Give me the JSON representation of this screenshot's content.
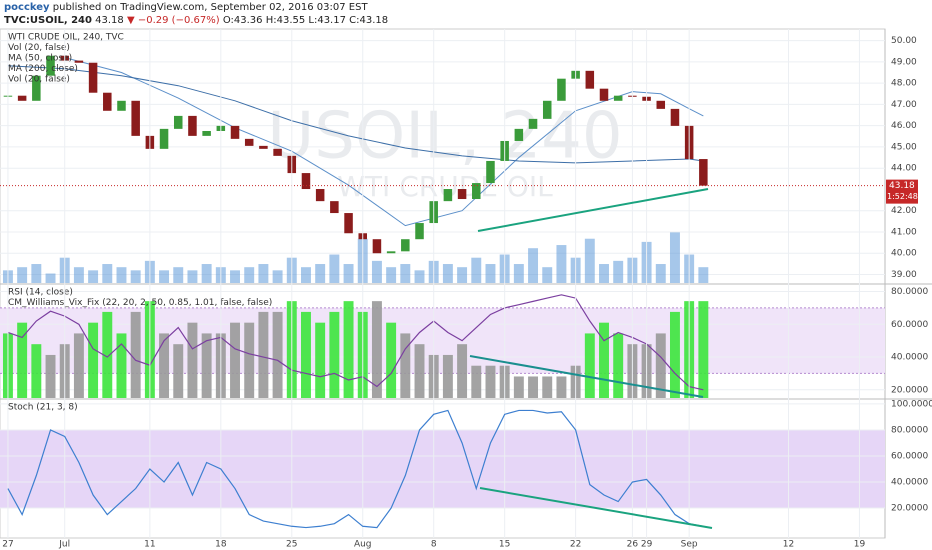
{
  "header": {
    "author": "pocckey",
    "published": "published on TradingView.com, September 02, 2016 03:07 EST",
    "symbol": "TVC:USOIL, 240",
    "last": "43.18",
    "change": "▼ −0.29 (−0.67%)",
    "ohlc": "O:43.36 H:43.55 L:43.17 C:43.18"
  },
  "chart_data": [
    {
      "type": "candlestick",
      "legend": [
        "WTI CRUDE OIL, 240, TVC",
        "Vol (20, false)",
        "MA (50, close)",
        "MA (200, close)",
        "Vol (20, false)"
      ],
      "watermark": [
        "USOIL, 240",
        "WTI CRUDE OIL"
      ],
      "up_color": "#3a9b3a",
      "down_color": "#8b1c1c",
      "x": [
        0,
        1,
        2,
        3,
        4,
        5,
        6,
        7,
        8,
        9,
        10,
        11,
        12,
        13,
        14,
        15,
        16,
        17,
        18,
        19,
        20,
        21,
        22,
        23,
        24,
        25,
        26,
        27,
        28,
        29,
        30,
        31,
        32,
        33,
        34,
        35,
        36,
        37,
        38,
        39,
        40,
        41,
        42,
        43,
        44,
        45,
        46,
        47,
        48,
        49
      ],
      "values": [
        47.41,
        47.17,
        48.35,
        49.29,
        49.06,
        48.96,
        47.55,
        46.7,
        47.17,
        45.52,
        44.91,
        45.85,
        46.46,
        45.52,
        45.75,
        45.99,
        45.38,
        45.05,
        44.91,
        44.58,
        43.77,
        43.02,
        42.45,
        41.89,
        40.94,
        40.66,
        40.0,
        40.09,
        40.66,
        41.42,
        42.45,
        43.02,
        42.55,
        43.3,
        44.34,
        45.28,
        45.85,
        46.32,
        47.17,
        48.21,
        48.58,
        47.74,
        47.17,
        47.41,
        47.36,
        47.17,
        46.79,
        45.99,
        44.43,
        43.18
      ],
      "series": [
        {
          "name": "MA (50, close)",
          "color": "#5b8fc9",
          "x": [
            4,
            8,
            12,
            16,
            20,
            24,
            28,
            32,
            36,
            40,
            44,
            46,
            48,
            49
          ],
          "values": [
            49.2,
            48.5,
            47.3,
            45.9,
            44.8,
            43.2,
            41.3,
            42.0,
            44.5,
            46.7,
            47.6,
            47.5,
            46.8,
            46.46
          ]
        },
        {
          "name": "MA (200, close)",
          "color": "#3d6fa8",
          "x": [
            0,
            4,
            8,
            12,
            16,
            20,
            24,
            28,
            32,
            36,
            40,
            44,
            48,
            49
          ],
          "values": [
            48.82,
            48.68,
            48.35,
            47.88,
            47.17,
            46.23,
            45.52,
            44.95,
            44.58,
            44.34,
            44.25,
            44.34,
            44.43,
            44.34
          ]
        },
        {
          "name": "Vol (20, false)",
          "type": "bar",
          "axis": "y2",
          "color": "#4d8fd6",
          "values": [
            20,
            25,
            30,
            15,
            40,
            25,
            20,
            30,
            25,
            20,
            35,
            20,
            25,
            20,
            30,
            25,
            20,
            25,
            30,
            20,
            40,
            25,
            30,
            45,
            30,
            70,
            35,
            25,
            30,
            20,
            35,
            30,
            25,
            40,
            30,
            45,
            30,
            55,
            25,
            60,
            40,
            70,
            30,
            35,
            40,
            65,
            30,
            80,
            45,
            25
          ]
        }
      ],
      "price_marker": {
        "value": 43.18,
        "label": "43.18"
      },
      "countdown": "1:52:48",
      "xlim": [
        -0.56,
        61.8
      ],
      "ylim": [
        38.6,
        50.5
      ],
      "y2lim": [
        0,
        400
      ],
      "grid": true,
      "yticks": [
        {
          "value": 39,
          "label": "39.00"
        },
        {
          "value": 40,
          "label": "40.00"
        },
        {
          "value": 41,
          "label": "41.00"
        },
        {
          "value": 42,
          "label": "42.00"
        },
        {
          "value": 44,
          "label": "44.00"
        },
        {
          "value": 45,
          "label": "45.00"
        },
        {
          "value": 46,
          "label": "46.00"
        },
        {
          "value": 47,
          "label": "47.00"
        },
        {
          "value": 48,
          "label": "48.00"
        },
        {
          "value": 49,
          "label": "49.00"
        },
        {
          "value": 50,
          "label": "50.00"
        }
      ]
    },
    {
      "type": "line",
      "legend": [
        "RSI (14, close)",
        "CM_Williams_Vix_Fix (22, 20, 2, 50, 0.85, 1.01, false, false)"
      ],
      "band": [
        30,
        70
      ],
      "band_color": "#f0e4f9",
      "x": [
        0,
        1,
        2,
        3,
        4,
        5,
        6,
        7,
        8,
        9,
        10,
        11,
        12,
        13,
        14,
        15,
        16,
        17,
        18,
        19,
        20,
        21,
        22,
        23,
        24,
        25,
        26,
        27,
        28,
        29,
        30,
        31,
        32,
        33,
        34,
        35,
        36,
        37,
        38,
        39,
        40,
        41,
        42,
        43,
        44,
        45,
        46,
        47,
        48,
        49
      ],
      "values": [
        55,
        52,
        62,
        68,
        65,
        60,
        45,
        40,
        48,
        38,
        35,
        50,
        58,
        45,
        50,
        52,
        45,
        42,
        40,
        38,
        32,
        30,
        28,
        30,
        26,
        28,
        22,
        30,
        45,
        55,
        62,
        55,
        50,
        58,
        66,
        70,
        72,
        74,
        76,
        78,
        76,
        62,
        50,
        55,
        52,
        48,
        40,
        30,
        22,
        20
      ],
      "color": "#7b3fa0",
      "series": [
        {
          "name": "CM_Williams_Vix_Fix",
          "type": "bar",
          "axis": "y2",
          "values": [
            6,
            7,
            5,
            4,
            5,
            6,
            7,
            8,
            6,
            8,
            9,
            6,
            5,
            7,
            6,
            6,
            7,
            7,
            8,
            8,
            9,
            8,
            7,
            8,
            9,
            8,
            9,
            7,
            6,
            5,
            4,
            4,
            5,
            3,
            3,
            3,
            2,
            2,
            2,
            2,
            3,
            6,
            7,
            6,
            5,
            5,
            6,
            8,
            9,
            9
          ],
          "colors": [
            "#3ce43c",
            "#3ce43c",
            "#3ce43c",
            "#999999",
            "#999999",
            "#999999",
            "#3ce43c",
            "#3ce43c",
            "#3ce43c",
            "#999999",
            "#3ce43c",
            "#999999",
            "#999999",
            "#999999",
            "#999999",
            "#999999",
            "#999999",
            "#999999",
            "#999999",
            "#999999",
            "#3ce43c",
            "#3ce43c",
            "#3ce43c",
            "#3ce43c",
            "#3ce43c",
            "#3ce43c",
            "#999999",
            "#3ce43c",
            "#999999",
            "#999999",
            "#999999",
            "#999999",
            "#999999",
            "#999999",
            "#999999",
            "#999999",
            "#999999",
            "#999999",
            "#999999",
            "#999999",
            "#999999",
            "#3ce43c",
            "#3ce43c",
            "#3ce43c",
            "#999999",
            "#999999",
            "#999999",
            "#3ce43c",
            "#3ce43c",
            "#3ce43c"
          ]
        }
      ],
      "xlim": [
        -0.56,
        61.8
      ],
      "ylim": [
        15,
        84
      ],
      "y2lim": [
        0,
        10.5
      ],
      "grid": true,
      "yticks": [
        {
          "value": 20,
          "label": "20.0000"
        },
        {
          "value": 40,
          "label": "40.0000"
        },
        {
          "value": 60,
          "label": "60.0000"
        },
        {
          "value": 80,
          "label": "80.0000"
        }
      ]
    },
    {
      "type": "line",
      "legend": [
        "Stoch (21, 3, 8)"
      ],
      "band": [
        20,
        80
      ],
      "band_color": "#e6d6f7",
      "x": [
        0,
        1,
        2,
        3,
        4,
        5,
        6,
        7,
        8,
        9,
        10,
        11,
        12,
        13,
        14,
        15,
        16,
        17,
        18,
        19,
        20,
        21,
        22,
        23,
        24,
        25,
        26,
        27,
        28,
        29,
        30,
        31,
        32,
        33,
        34,
        35,
        36,
        37,
        38,
        39,
        40,
        41,
        42,
        43,
        44,
        45,
        46,
        47,
        48,
        49
      ],
      "values": [
        35,
        15,
        45,
        80,
        75,
        55,
        30,
        15,
        25,
        35,
        50,
        40,
        55,
        30,
        55,
        50,
        35,
        15,
        10,
        8,
        6,
        5,
        6,
        8,
        15,
        6,
        5,
        20,
        45,
        80,
        92,
        95,
        70,
        35,
        70,
        92,
        95,
        95,
        93,
        94,
        80,
        38,
        30,
        25,
        40,
        42,
        30,
        15,
        8,
        6
      ],
      "color": "#3d7fd0",
      "xlim": [
        -0.56,
        61.8
      ],
      "ylim": [
        -3,
        103
      ],
      "grid": true,
      "yticks": [
        {
          "value": 20,
          "label": "20.0000"
        },
        {
          "value": 40,
          "label": "40.0000"
        },
        {
          "value": 60,
          "label": "60.0000"
        },
        {
          "value": 80,
          "label": "80.0000"
        },
        {
          "value": 100,
          "label": "100.0000"
        }
      ],
      "xticks": [
        {
          "value": 0,
          "label": "27"
        },
        {
          "value": 4,
          "label": "Jul"
        },
        {
          "value": 10,
          "label": "11"
        },
        {
          "value": 15,
          "label": "18"
        },
        {
          "value": 20,
          "label": "25"
        },
        {
          "value": 25,
          "label": "Aug"
        },
        {
          "value": 30,
          "label": "8"
        },
        {
          "value": 35,
          "label": "15"
        },
        {
          "value": 40,
          "label": "22"
        },
        {
          "value": 44,
          "label": "26"
        },
        {
          "value": 45,
          "label": "29"
        },
        {
          "value": 48,
          "label": "Sep"
        },
        {
          "value": 55,
          "label": "12"
        },
        {
          "value": 60,
          "label": "19"
        }
      ]
    }
  ]
}
